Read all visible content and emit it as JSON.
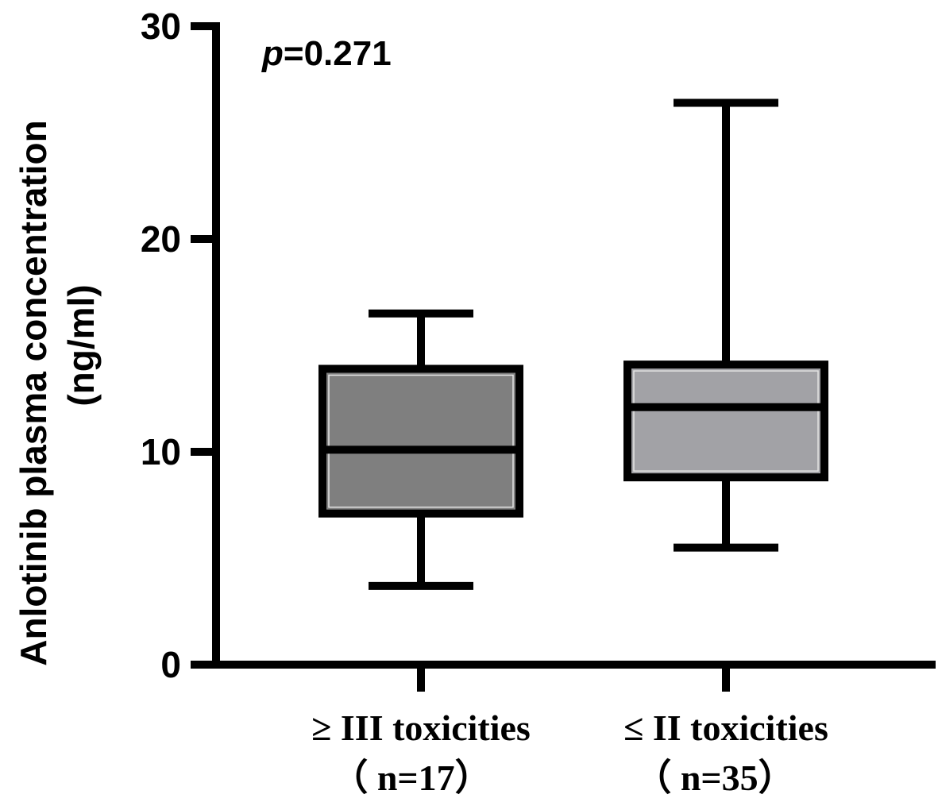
{
  "chart_data": {
    "type": "box",
    "ylabel_lines": [
      "Anlotinib plasma concentration",
      "(ng/ml)"
    ],
    "xlabel": "",
    "ylim": [
      0,
      30
    ],
    "y_ticks": [
      0,
      10,
      20,
      30
    ],
    "y_tick_labels": [
      "0",
      "10",
      "20",
      "30"
    ],
    "annotation": {
      "p_symbol": "p",
      "p_value_text": "=0.271"
    },
    "series": [
      {
        "label_line1": "≥ III toxicities",
        "label_line2": "（ n=17）",
        "min": 3.7,
        "q1": 7.1,
        "median": 10.1,
        "q3": 13.9,
        "max": 16.5,
        "fill": "#7f7f7f"
      },
      {
        "label_line1": "≤ II toxicities",
        "label_line2": "（ n=35）",
        "min": 5.5,
        "q1": 8.8,
        "median": 12.1,
        "q3": 14.1,
        "max": 26.4,
        "fill": "#a2a2a6"
      }
    ]
  }
}
